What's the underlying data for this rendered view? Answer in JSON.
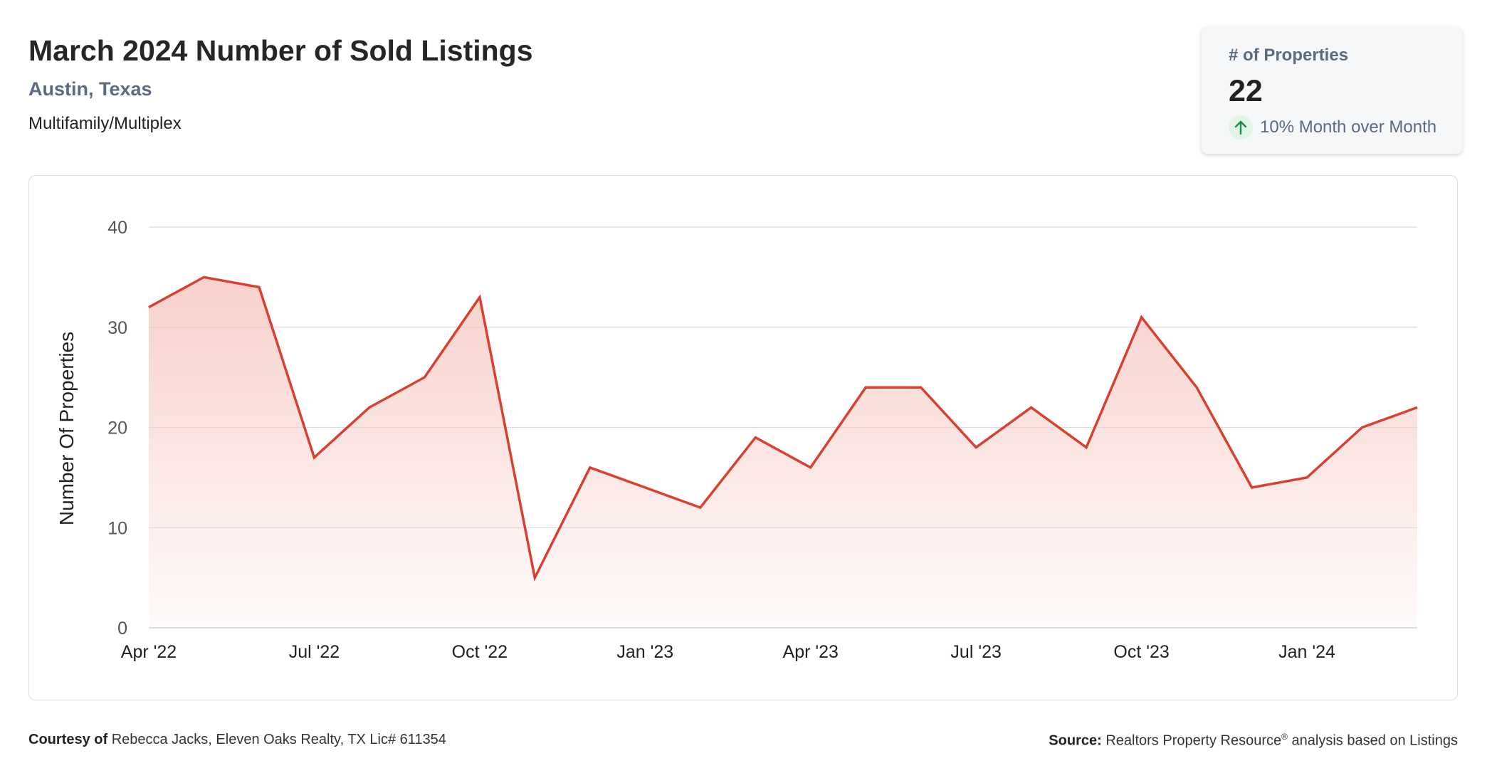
{
  "header": {
    "title": "March 2024 Number of Sold Listings",
    "location": "Austin, Texas",
    "category": "Multifamily/Multiplex"
  },
  "kpi": {
    "label": "# of Properties",
    "value": "22",
    "change": "10% Month over Month",
    "change_direction": "up",
    "icon": "arrow-up-icon"
  },
  "colors": {
    "line": "#d9402f",
    "area": "#f6c9c3",
    "grid": "#dcdcdc",
    "up_icon": "#1f8f4e",
    "up_icon_bg": "#dff5e6"
  },
  "chart_data": {
    "type": "area",
    "ylabel": "Number Of Properties",
    "ylim": [
      0,
      40
    ],
    "yticks": [
      0,
      10,
      20,
      30,
      40
    ],
    "grid": true,
    "x": [
      "2022-04",
      "2022-05",
      "2022-06",
      "2022-07",
      "2022-08",
      "2022-09",
      "2022-10",
      "2022-11",
      "2022-12",
      "2023-01",
      "2023-02",
      "2023-03",
      "2023-04",
      "2023-05",
      "2023-06",
      "2023-07",
      "2023-08",
      "2023-09",
      "2023-10",
      "2023-11",
      "2023-12",
      "2024-01",
      "2024-02",
      "2024-03"
    ],
    "xtick_labels": [
      "Apr '22",
      "Jul '22",
      "Oct '22",
      "Jan '23",
      "Apr '23",
      "Jul '23",
      "Oct '23",
      "Jan '24"
    ],
    "series": [
      {
        "values": [
          32,
          35,
          34,
          17,
          22,
          25,
          33,
          5,
          16,
          14,
          12,
          19,
          16,
          24,
          24,
          18,
          22,
          18,
          31,
          24,
          14,
          15,
          20,
          22
        ]
      }
    ]
  },
  "footer": {
    "courtesy_label": "Courtesy of",
    "courtesy_text": "Rebecca Jacks, Eleven Oaks Realty, TX Lic# 611354",
    "source_label": "Source:",
    "source_text": "Realtors Property Resource",
    "source_mark": "®",
    "source_suffix": "analysis based on Listings"
  }
}
